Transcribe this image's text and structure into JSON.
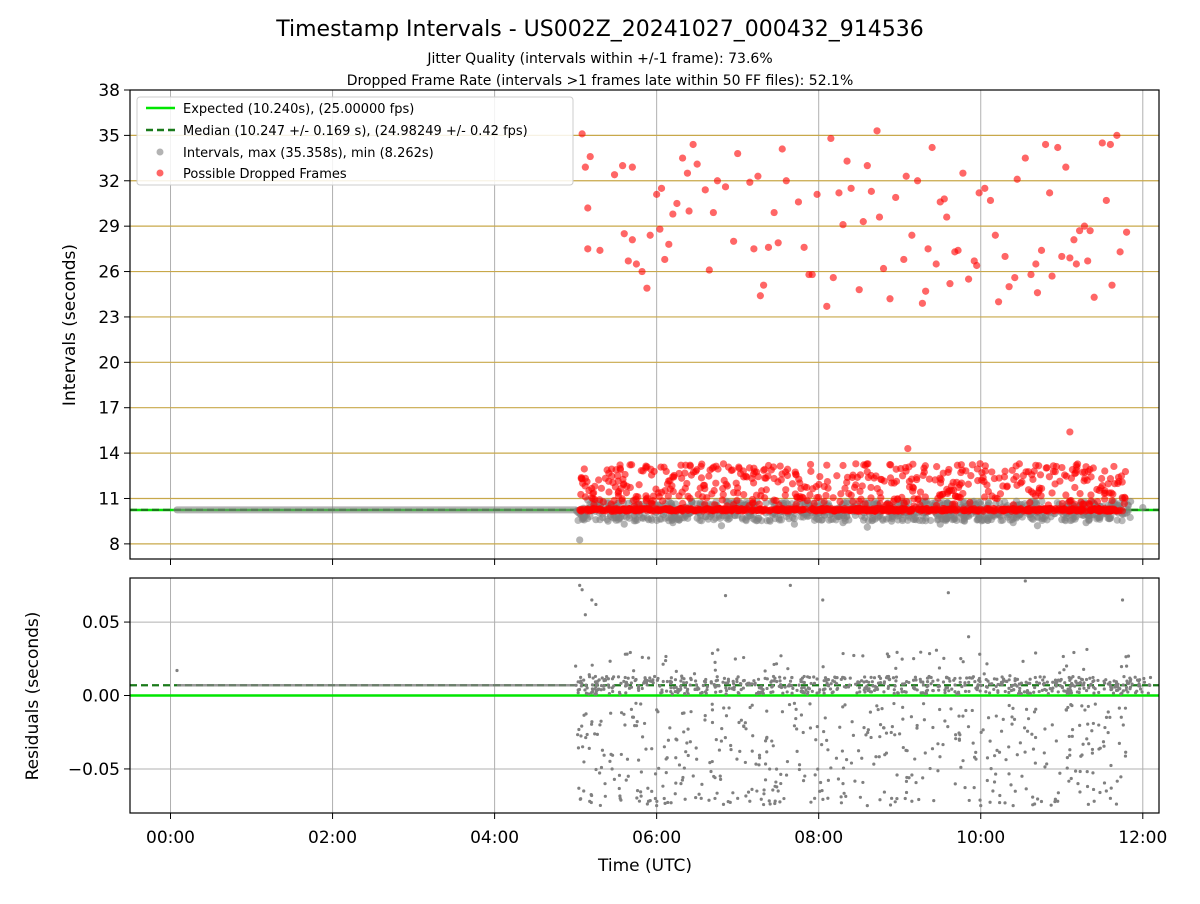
{
  "figure": {
    "title": "Timestamp Intervals - US002Z_20241027_000432_914536",
    "subtitle_1": "Jitter Quality (intervals within +/-1 frame): 73.6%",
    "subtitle_2": "Dropped Frame Rate (intervals >1 frames late within 50 FF files): 52.1%",
    "xlabel": "Time (UTC)"
  },
  "colors": {
    "expected": "#00e600",
    "median": "#1a7a1a",
    "intervals": "#808080",
    "dropped": "#ff0000",
    "gold_grid": "#c8a84a",
    "grey_grid": "#b0b0b0"
  },
  "chart_data": [
    {
      "type": "scatter",
      "panel": "top",
      "ylabel": "Intervals (seconds)",
      "xlim_hours": [
        -0.5,
        12.2
      ],
      "ylim": [
        7,
        38
      ],
      "x_ticks": [
        "00:00",
        "02:00",
        "04:00",
        "06:00",
        "08:00",
        "10:00",
        "12:00"
      ],
      "x_tick_hours": [
        0,
        2,
        4,
        6,
        8,
        10,
        12
      ],
      "y_ticks": [
        8,
        11,
        14,
        17,
        20,
        23,
        26,
        29,
        32,
        35,
        38
      ],
      "gold_gridlines": [
        8,
        11,
        14,
        17,
        20,
        23,
        26,
        29,
        32,
        35
      ],
      "grid": true,
      "legend_position": "top-left",
      "legend": [
        "Expected (10.240s), (25.00000 fps)",
        "Median (10.247 +/- 0.169 s), (24.98249 +/- 0.42 fps)",
        "Intervals, max (35.358s), min (8.262s)",
        "Possible Dropped Frames"
      ],
      "expected_value": 10.24,
      "median_value": 10.247,
      "quiet_period": {
        "x_start_hours": 0.08,
        "x_end_hours": 5.0,
        "value": 10.247
      },
      "series": [
        {
          "name": "Intervals, max (35.358s), min (8.262s)",
          "points_hours_seconds": [
            [
              5.05,
              8.26
            ],
            [
              5.1,
              9.8
            ],
            [
              5.25,
              9.6
            ],
            [
              5.4,
              9.5
            ],
            [
              5.6,
              9.3
            ],
            [
              5.9,
              9.6
            ],
            [
              6.2,
              9.4
            ],
            [
              6.5,
              9.7
            ],
            [
              6.8,
              9.2
            ],
            [
              7.1,
              9.6
            ],
            [
              7.4,
              9.5
            ],
            [
              7.7,
              9.3
            ],
            [
              8.0,
              9.6
            ],
            [
              8.3,
              9.4
            ],
            [
              8.6,
              9.1
            ],
            [
              8.9,
              9.5
            ],
            [
              9.2,
              9.6
            ],
            [
              9.5,
              9.3
            ],
            [
              9.8,
              9.5
            ],
            [
              10.1,
              9.7
            ],
            [
              10.4,
              9.4
            ],
            [
              10.7,
              9.2
            ],
            [
              11.0,
              9.6
            ],
            [
              11.3,
              9.4
            ],
            [
              11.6,
              9.7
            ],
            [
              11.85,
              10.8
            ],
            [
              12.0,
              10.4
            ],
            [
              5.15,
              10.9
            ],
            [
              11.75,
              11.0
            ]
          ]
        },
        {
          "name": "Possible Dropped Frames",
          "points_hours_seconds": [
            [
              5.08,
              35.1
            ],
            [
              5.12,
              32.9
            ],
            [
              5.18,
              33.6
            ],
            [
              5.15,
              30.2
            ],
            [
              5.15,
              27.5
            ],
            [
              5.3,
              27.4
            ],
            [
              5.48,
              32.4
            ],
            [
              5.58,
              33.0
            ],
            [
              5.6,
              28.5
            ],
            [
              5.65,
              26.7
            ],
            [
              5.7,
              32.9
            ],
            [
              5.7,
              28.1
            ],
            [
              5.75,
              26.5
            ],
            [
              5.82,
              26.0
            ],
            [
              5.88,
              24.9
            ],
            [
              5.92,
              28.4
            ],
            [
              6.0,
              31.1
            ],
            [
              6.04,
              28.8
            ],
            [
              6.06,
              31.5
            ],
            [
              6.1,
              26.8
            ],
            [
              6.15,
              27.8
            ],
            [
              6.2,
              29.8
            ],
            [
              6.25,
              30.5
            ],
            [
              6.32,
              33.5
            ],
            [
              6.38,
              32.5
            ],
            [
              6.4,
              30.0
            ],
            [
              6.45,
              34.4
            ],
            [
              6.5,
              33.1
            ],
            [
              6.6,
              31.4
            ],
            [
              6.65,
              26.1
            ],
            [
              6.7,
              29.9
            ],
            [
              6.75,
              32.0
            ],
            [
              6.85,
              31.6
            ],
            [
              6.95,
              28.0
            ],
            [
              7.0,
              33.8
            ],
            [
              7.15,
              31.9
            ],
            [
              7.2,
              27.5
            ],
            [
              7.25,
              32.3
            ],
            [
              7.28,
              24.4
            ],
            [
              7.32,
              25.1
            ],
            [
              7.38,
              27.6
            ],
            [
              7.45,
              29.9
            ],
            [
              7.5,
              27.9
            ],
            [
              7.55,
              34.1
            ],
            [
              7.6,
              32.0
            ],
            [
              7.75,
              30.6
            ],
            [
              7.82,
              27.6
            ],
            [
              7.88,
              25.8
            ],
            [
              7.92,
              25.8
            ],
            [
              7.98,
              31.1
            ],
            [
              8.1,
              23.7
            ],
            [
              8.15,
              34.8
            ],
            [
              8.18,
              25.6
            ],
            [
              8.25,
              31.2
            ],
            [
              8.3,
              29.1
            ],
            [
              8.35,
              33.3
            ],
            [
              8.4,
              31.5
            ],
            [
              8.5,
              24.8
            ],
            [
              8.55,
              29.3
            ],
            [
              8.6,
              33.0
            ],
            [
              8.65,
              31.3
            ],
            [
              8.72,
              35.3
            ],
            [
              8.75,
              29.6
            ],
            [
              8.8,
              26.2
            ],
            [
              8.88,
              24.2
            ],
            [
              8.95,
              30.9
            ],
            [
              9.05,
              26.8
            ],
            [
              9.08,
              32.3
            ],
            [
              9.15,
              28.4
            ],
            [
              9.22,
              32.0
            ],
            [
              9.28,
              23.9
            ],
            [
              9.32,
              24.7
            ],
            [
              9.35,
              27.5
            ],
            [
              9.4,
              34.2
            ],
            [
              9.45,
              26.5
            ],
            [
              9.5,
              30.6
            ],
            [
              9.55,
              30.8
            ],
            [
              9.58,
              29.6
            ],
            [
              9.62,
              25.2
            ],
            [
              9.68,
              27.3
            ],
            [
              9.72,
              27.4
            ],
            [
              9.78,
              32.5
            ],
            [
              9.85,
              25.5
            ],
            [
              9.92,
              26.7
            ],
            [
              9.95,
              26.4
            ],
            [
              9.98,
              31.2
            ],
            [
              10.05,
              31.5
            ],
            [
              10.12,
              30.7
            ],
            [
              10.18,
              28.4
            ],
            [
              10.22,
              24.0
            ],
            [
              10.3,
              27.0
            ],
            [
              10.35,
              25.0
            ],
            [
              10.42,
              25.6
            ],
            [
              10.45,
              32.1
            ],
            [
              10.55,
              33.5
            ],
            [
              10.62,
              25.8
            ],
            [
              10.68,
              26.5
            ],
            [
              10.7,
              24.6
            ],
            [
              10.75,
              27.4
            ],
            [
              10.8,
              34.4
            ],
            [
              10.85,
              31.2
            ],
            [
              10.88,
              25.7
            ],
            [
              10.95,
              34.2
            ],
            [
              11.0,
              27.0
            ],
            [
              11.05,
              32.9
            ],
            [
              11.1,
              26.9
            ],
            [
              11.15,
              28.1
            ],
            [
              11.18,
              26.5
            ],
            [
              11.22,
              28.7
            ],
            [
              11.28,
              29.0
            ],
            [
              11.32,
              26.7
            ],
            [
              11.35,
              28.7
            ],
            [
              11.4,
              24.3
            ],
            [
              11.5,
              34.5
            ],
            [
              11.55,
              30.7
            ],
            [
              11.6,
              34.4
            ],
            [
              11.62,
              25.1
            ],
            [
              11.68,
              35.0
            ],
            [
              11.72,
              27.3
            ],
            [
              11.8,
              28.6
            ],
            [
              5.08,
              12.3
            ],
            [
              9.1,
              14.3
            ],
            [
              11.1,
              15.4
            ],
            [
              5.5,
              12.9
            ],
            [
              6.3,
              13.2
            ],
            [
              7.2,
              13.0
            ],
            [
              8.1,
              13.2
            ],
            [
              9.3,
              13.0
            ],
            [
              10.3,
              12.8
            ],
            [
              11.3,
              13.1
            ],
            [
              11.7,
              12.4
            ]
          ]
        }
      ]
    },
    {
      "type": "scatter",
      "panel": "bottom",
      "ylabel": "Residuals (seconds)",
      "xlim_hours": [
        -0.5,
        12.2
      ],
      "ylim": [
        -0.08,
        0.08
      ],
      "y_ticks": [
        -0.05,
        0.0,
        0.05
      ],
      "y_tick_labels": [
        "−0.05",
        "0.00",
        "0.05"
      ],
      "grid": true,
      "expected_residual": 0.0,
      "median_residual": 0.007,
      "quiet_period": {
        "x_start_hours": 0.08,
        "x_end_hours": 5.0,
        "value": 0.007
      },
      "series": [
        {
          "name": "Residuals",
          "points_hours_seconds": [
            [
              0.08,
              0.017
            ],
            [
              5.0,
              0.02
            ],
            [
              5.05,
              0.075
            ],
            [
              5.08,
              0.072
            ],
            [
              5.12,
              0.055
            ],
            [
              5.2,
              0.065
            ],
            [
              5.25,
              0.062
            ],
            [
              5.1,
              -0.065
            ],
            [
              5.3,
              -0.02
            ],
            [
              5.45,
              -0.05
            ],
            [
              5.55,
              -0.07
            ],
            [
              5.65,
              -0.055
            ],
            [
              5.9,
              -0.072
            ],
            [
              6.0,
              -0.075
            ],
            [
              6.3,
              -0.06
            ],
            [
              6.55,
              -0.07
            ],
            [
              6.85,
              0.068
            ],
            [
              7.0,
              -0.07
            ],
            [
              7.15,
              -0.072
            ],
            [
              7.5,
              -0.065
            ],
            [
              7.65,
              0.075
            ],
            [
              7.95,
              -0.07
            ],
            [
              8.05,
              0.065
            ],
            [
              8.3,
              -0.06
            ],
            [
              8.6,
              -0.075
            ],
            [
              8.9,
              -0.07
            ],
            [
              9.15,
              -0.072
            ],
            [
              9.6,
              0.07
            ],
            [
              9.85,
              0.04
            ],
            [
              10.0,
              -0.075
            ],
            [
              10.15,
              -0.065
            ],
            [
              10.4,
              -0.075
            ],
            [
              10.55,
              0.078
            ],
            [
              10.95,
              -0.072
            ],
            [
              11.2,
              -0.06
            ],
            [
              11.4,
              -0.072
            ],
            [
              11.55,
              -0.065
            ],
            [
              11.6,
              -0.07
            ],
            [
              11.75,
              0.065
            ],
            [
              11.8,
              0.02
            ],
            [
              11.95,
              0.01
            ]
          ]
        }
      ]
    }
  ]
}
